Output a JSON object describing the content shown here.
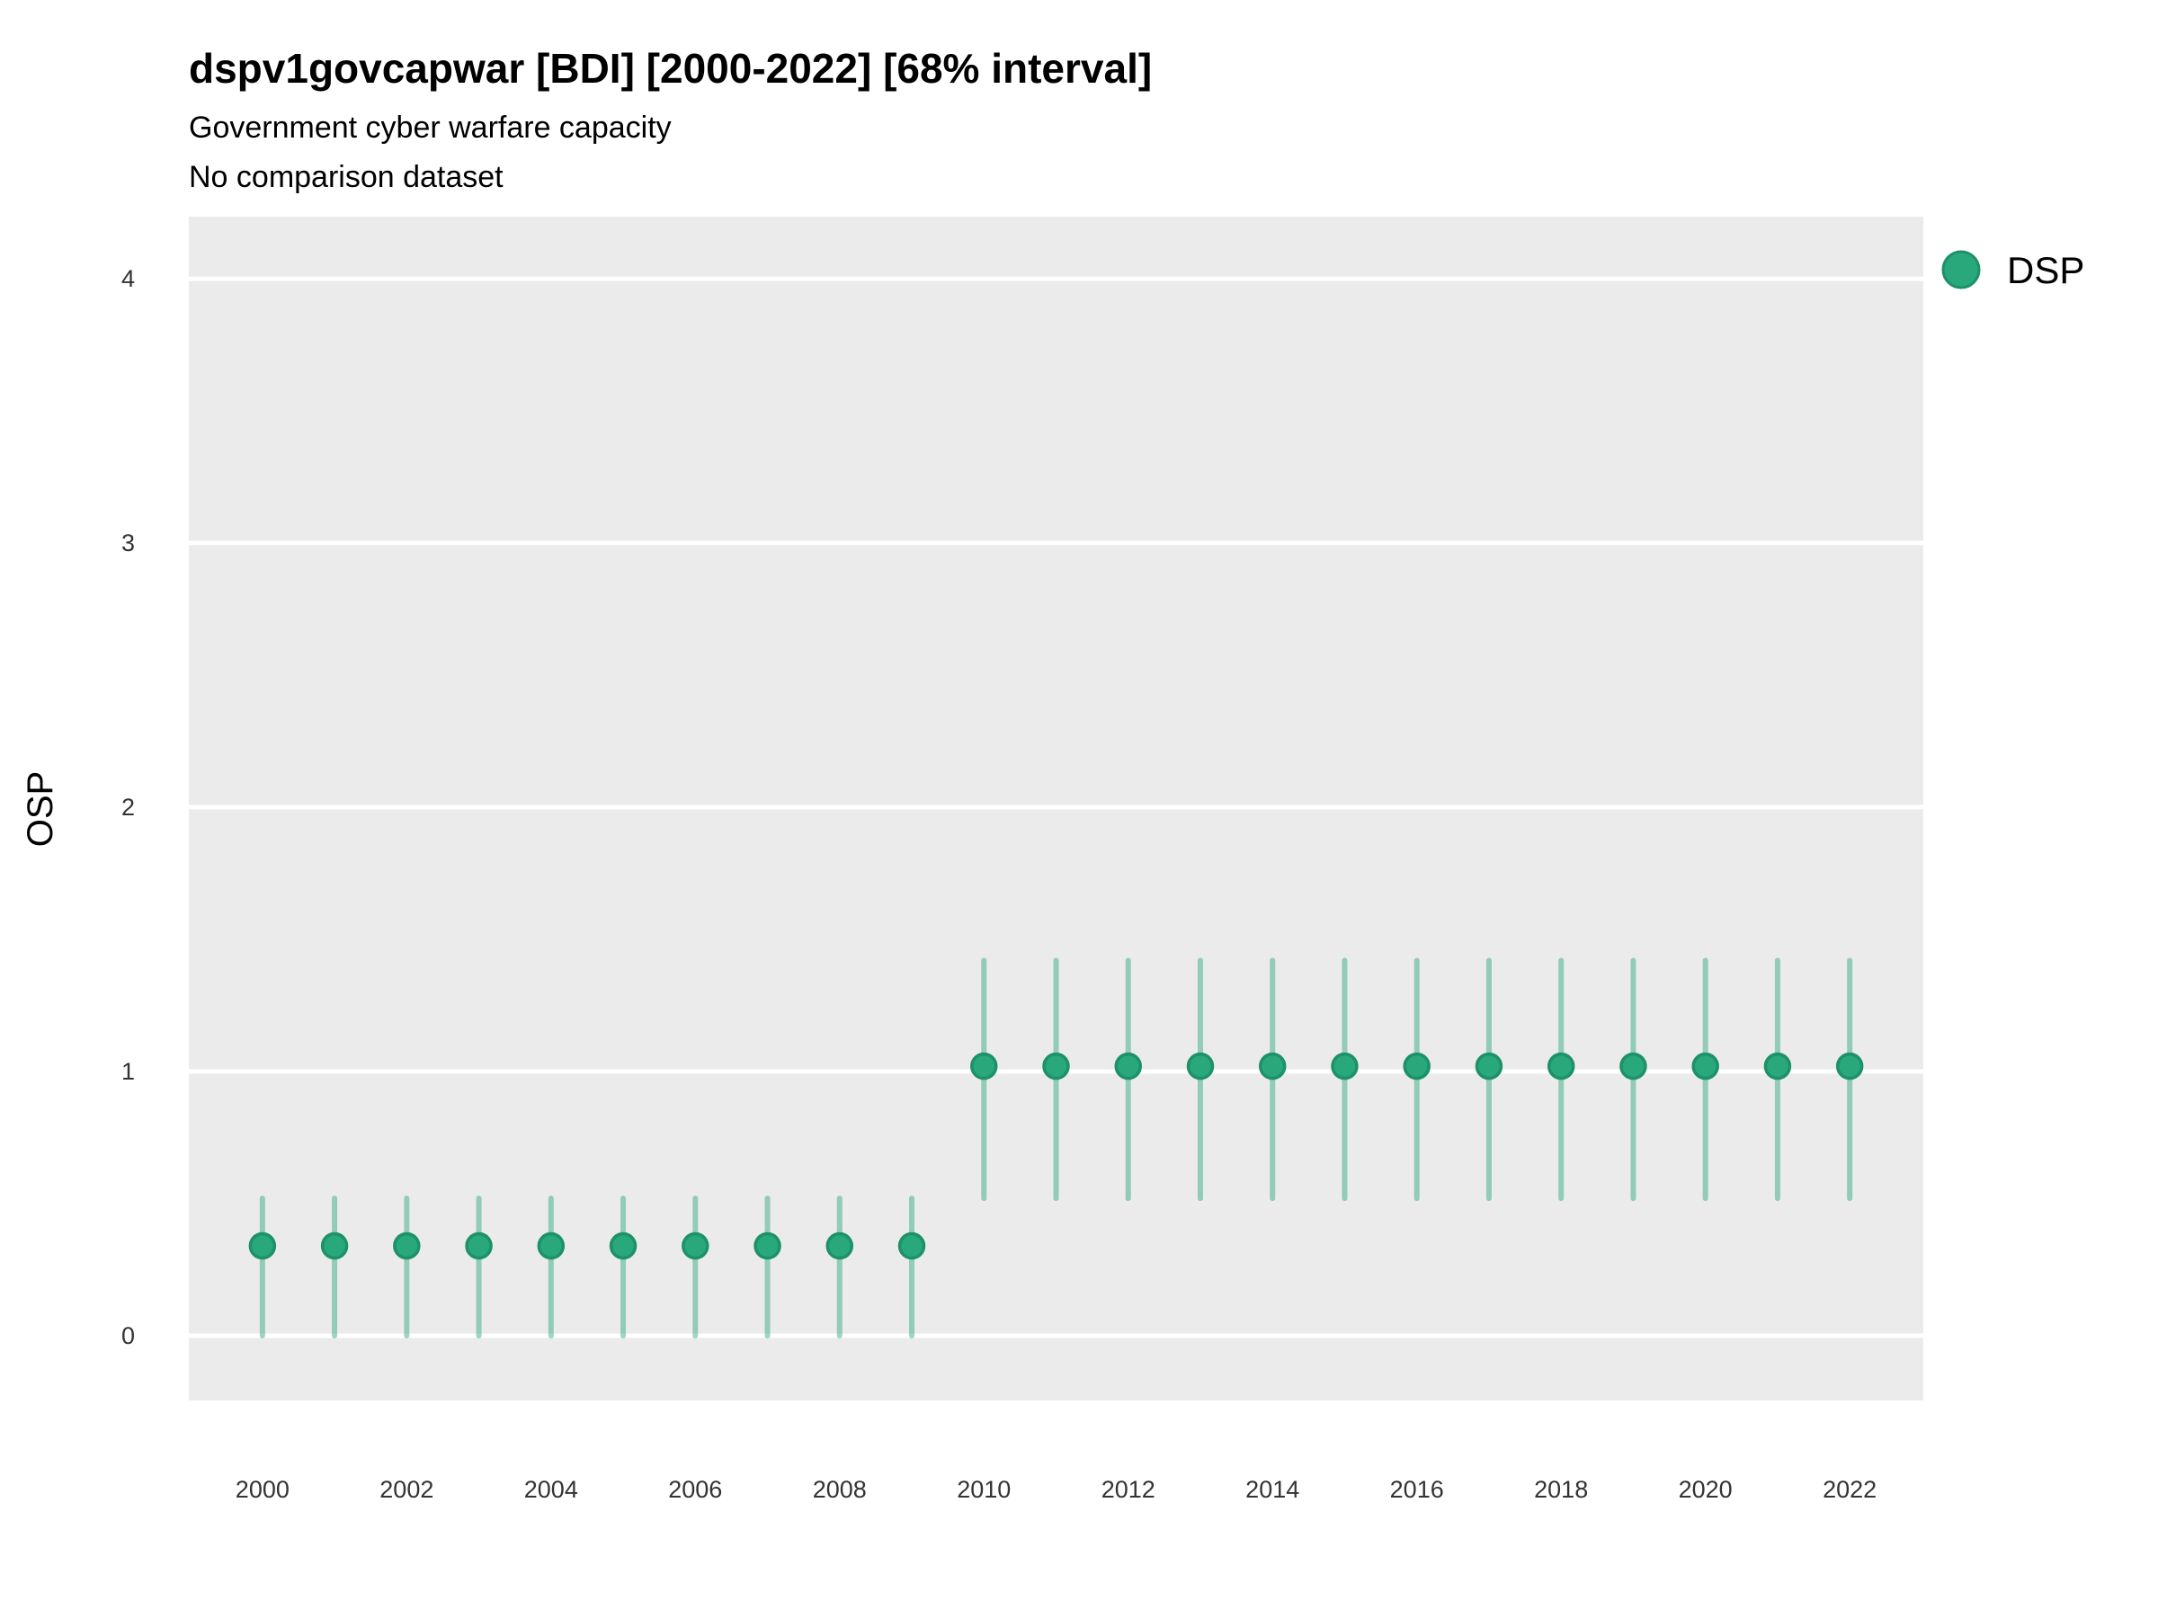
{
  "title": "dspv1govcapwar [BDI] [2000-2022] [68% interval]",
  "subtitle": "Government cyber warfare capacity",
  "subtitle2": "No comparison dataset",
  "legend": {
    "label": "DSP",
    "marker": "circle-icon"
  },
  "colors": {
    "point_fill": "#29a87b",
    "point_stroke": "#1d9169",
    "interval": "rgba(41, 168, 120, 0.46)",
    "panel_background": "#ebebeb",
    "gridline": "#ffffff",
    "tick_text": "#333333",
    "text": "#000000"
  },
  "chart_data": {
    "type": "pointrange",
    "title": "dspv1govcapwar [BDI] [2000-2022] [68% interval]",
    "subtitle": "Government cyber warfare capacity",
    "note": "No comparison dataset",
    "interval": "68%",
    "xlabel": "",
    "ylabel": "OSP",
    "ylim": [
      0,
      4
    ],
    "grid": "major-horizontal-only",
    "legend_position": "right-top",
    "x": [
      2000,
      2001,
      2002,
      2003,
      2004,
      2005,
      2006,
      2007,
      2008,
      2009,
      2010,
      2011,
      2012,
      2013,
      2014,
      2015,
      2016,
      2017,
      2018,
      2019,
      2020,
      2021,
      2022
    ],
    "series": [
      {
        "name": "DSP",
        "y": [
          0.34,
          0.34,
          0.34,
          0.34,
          0.34,
          0.34,
          0.34,
          0.34,
          0.34,
          0.34,
          1.02,
          1.02,
          1.02,
          1.02,
          1.02,
          1.02,
          1.02,
          1.02,
          1.02,
          1.02,
          1.02,
          1.02,
          1.02
        ],
        "lower": [
          0.0,
          0.0,
          0.0,
          0.0,
          0.0,
          0.0,
          0.0,
          0.0,
          0.0,
          0.0,
          0.52,
          0.52,
          0.52,
          0.52,
          0.52,
          0.52,
          0.52,
          0.52,
          0.52,
          0.52,
          0.52,
          0.52,
          0.52
        ],
        "upper": [
          0.52,
          0.52,
          0.52,
          0.52,
          0.52,
          0.52,
          0.52,
          0.52,
          0.52,
          0.52,
          1.42,
          1.42,
          1.42,
          1.42,
          1.42,
          1.42,
          1.42,
          1.42,
          1.42,
          1.42,
          1.42,
          1.42,
          1.42
        ]
      }
    ],
    "yticks": [
      0,
      1,
      2,
      3,
      4
    ],
    "xticks": [
      2000,
      2002,
      2004,
      2006,
      2008,
      2010,
      2012,
      2014,
      2016,
      2018,
      2020,
      2022
    ]
  }
}
